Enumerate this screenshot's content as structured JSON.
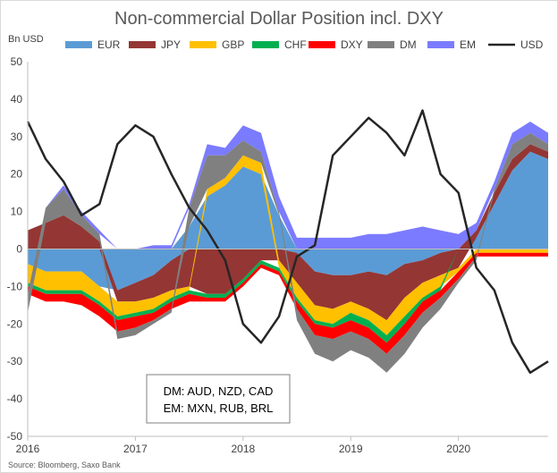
{
  "chart_data": {
    "type": "area",
    "stacked": true,
    "title": "Non-commercial Dollar Position incl. DXY",
    "ylabel": "Bn USD",
    "xlabel": "",
    "ylim": [
      -50,
      50
    ],
    "yticks": [
      -50,
      -40,
      -30,
      -20,
      -10,
      0,
      10,
      20,
      30,
      40,
      50
    ],
    "xlim": [
      "2016-01",
      "2020-11"
    ],
    "xticks": [
      "2016",
      "2017",
      "2018",
      "2019",
      "2020"
    ],
    "grid": false,
    "legend_position": "top",
    "source": "Source: Bloomberg, Saxo Bank",
    "annotation": [
      "DM: AUD, NZD, CAD",
      "EM: MXN, RUB, BRL"
    ],
    "x": [
      "2016-01",
      "2016-03",
      "2016-05",
      "2016-07",
      "2016-09",
      "2016-11",
      "2017-01",
      "2017-03",
      "2017-05",
      "2017-07",
      "2017-09",
      "2017-11",
      "2018-01",
      "2018-03",
      "2018-05",
      "2018-07",
      "2018-09",
      "2018-11",
      "2019-01",
      "2019-03",
      "2019-05",
      "2019-07",
      "2019-09",
      "2019-11",
      "2020-01",
      "2020-03",
      "2020-05",
      "2020-07",
      "2020-09",
      "2020-11"
    ],
    "series": [
      {
        "name": "EUR",
        "color": "#5b9bd5",
        "values": [
          -4,
          -6,
          -6,
          -6,
          -10,
          -11,
          -9,
          -7,
          -3,
          6,
          14,
          17,
          22,
          20,
          9,
          -1,
          -6,
          -7,
          -7,
          -6,
          -7,
          -4,
          -3,
          -1,
          0,
          3,
          12,
          21,
          26,
          24
        ]
      },
      {
        "name": "JPY",
        "color": "#943634",
        "values": [
          5,
          7,
          9,
          6,
          2,
          -3,
          -5,
          -6,
          -8,
          -10,
          -12,
          -12,
          -8,
          -3,
          -3,
          -8,
          -9,
          -9,
          -7,
          -10,
          -12,
          -9,
          -6,
          -6,
          -5,
          2,
          3,
          3,
          2,
          2
        ]
      },
      {
        "name": "GBP",
        "color": "#ffc000",
        "values": [
          -5,
          -5,
          -5,
          -5,
          -4,
          -4,
          -3,
          -3,
          -2,
          -1,
          2,
          2,
          3,
          3,
          -2,
          -4,
          -4,
          -4,
          -3,
          -3,
          -4,
          -5,
          -4,
          -3,
          -1,
          -1,
          -1,
          -1,
          -1,
          -1
        ]
      },
      {
        "name": "CHF",
        "color": "#00b050",
        "values": [
          -1,
          -1,
          -1,
          -1,
          -1,
          -1,
          -1,
          -1,
          -1,
          -1,
          -1,
          -1,
          -1,
          -1,
          -1,
          -1,
          -1,
          -1,
          -2,
          -2,
          -2,
          -2,
          -1,
          -1,
          0,
          0,
          0,
          0,
          0,
          0
        ]
      },
      {
        "name": "DXY",
        "color": "#ff0000",
        "values": [
          -2,
          -2,
          -2,
          -3,
          -3,
          -3,
          -3,
          -2,
          -2,
          -2,
          -1,
          -1,
          -1,
          -1,
          -1,
          -2,
          -3,
          -3,
          -3,
          -3,
          -3,
          -3,
          -3,
          -2,
          -2,
          -1,
          -1,
          -1,
          -1,
          -1
        ]
      },
      {
        "name": "DM",
        "color": "#808080",
        "values": [
          -5,
          4,
          7,
          3,
          2,
          -2,
          -2,
          -1,
          -1,
          5,
          9,
          6,
          4,
          3,
          1,
          -3,
          -5,
          -6,
          -5,
          -5,
          -5,
          -5,
          -4,
          -3,
          -1,
          -1,
          1,
          4,
          3,
          2
        ]
      },
      {
        "name": "EM",
        "color": "#7b7bff",
        "values": [
          0,
          0,
          1,
          1,
          1,
          0,
          0,
          1,
          1,
          1,
          3,
          2,
          4,
          5,
          4,
          3,
          3,
          3,
          3,
          4,
          4,
          5,
          6,
          5,
          4,
          2,
          2,
          3,
          3,
          3
        ]
      },
      {
        "name": "USD",
        "color": "#262626",
        "type": "line",
        "values": [
          34,
          24,
          18,
          9,
          12,
          28,
          33,
          30,
          20,
          11,
          5,
          -3,
          -20,
          -25,
          -18,
          -2,
          1,
          25,
          30,
          35,
          31,
          25,
          37,
          20,
          15,
          -5,
          -11,
          -25,
          -33,
          -30
        ]
      }
    ]
  }
}
